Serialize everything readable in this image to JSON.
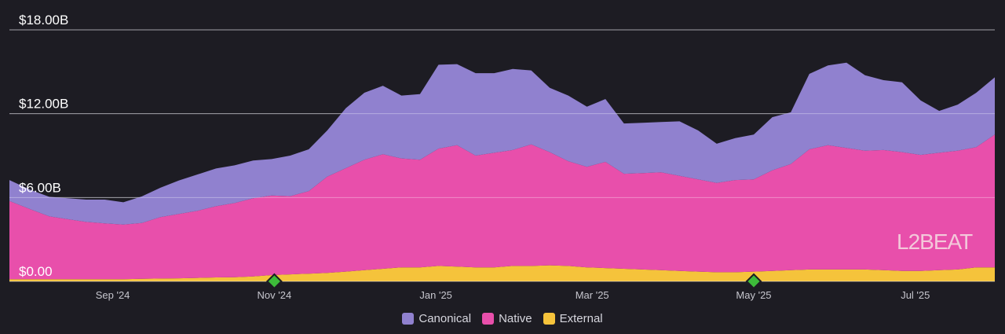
{
  "chart_data": {
    "type": "area",
    "stacked": true,
    "yticks": [
      "$0.00",
      "$6.00B",
      "$12.00B",
      "$18.00B"
    ],
    "ylim": [
      0,
      18
    ],
    "xticks": [
      "Sep '24",
      "Nov '24",
      "Jan '25",
      "Mar '25",
      "May '25",
      "Jul '25"
    ],
    "x": [
      "2024-07-24",
      "2024-08-01",
      "2024-08-08",
      "2024-08-15",
      "2024-08-22",
      "2024-08-29",
      "2024-09-05",
      "2024-09-12",
      "2024-09-19",
      "2024-09-26",
      "2024-10-03",
      "2024-10-10",
      "2024-10-17",
      "2024-10-24",
      "2024-10-31",
      "2024-11-07",
      "2024-11-14",
      "2024-11-21",
      "2024-11-28",
      "2024-12-05",
      "2024-12-12",
      "2024-12-19",
      "2024-12-26",
      "2025-01-02",
      "2025-01-09",
      "2025-01-16",
      "2025-01-23",
      "2025-01-30",
      "2025-02-06",
      "2025-02-13",
      "2025-02-20",
      "2025-02-27",
      "2025-03-06",
      "2025-03-13",
      "2025-03-20",
      "2025-03-27",
      "2025-04-03",
      "2025-04-10",
      "2025-04-17",
      "2025-04-24",
      "2025-05-01",
      "2025-05-08",
      "2025-05-15",
      "2025-05-22",
      "2025-05-29",
      "2025-06-05",
      "2025-06-12",
      "2025-06-19",
      "2025-06-26",
      "2025-07-03",
      "2025-07-10",
      "2025-07-17",
      "2025-07-24",
      "2025-07-31"
    ],
    "series": [
      {
        "name": "External",
        "color": "#f5c33b",
        "values": [
          0.15,
          0.15,
          0.15,
          0.15,
          0.15,
          0.15,
          0.16,
          0.18,
          0.2,
          0.22,
          0.25,
          0.28,
          0.3,
          0.35,
          0.45,
          0.5,
          0.55,
          0.6,
          0.7,
          0.8,
          0.9,
          1.0,
          1.0,
          1.1,
          1.05,
          1.0,
          1.0,
          1.1,
          1.1,
          1.15,
          1.1,
          1.0,
          0.95,
          0.9,
          0.85,
          0.8,
          0.75,
          0.7,
          0.65,
          0.65,
          0.7,
          0.75,
          0.8,
          0.85,
          0.85,
          0.85,
          0.85,
          0.8,
          0.75,
          0.75,
          0.8,
          0.85,
          1.0,
          1.0
        ]
      },
      {
        "name": "Native",
        "color": "#e84fab",
        "values": [
          5.6,
          5.0,
          4.5,
          4.3,
          4.1,
          4.0,
          3.9,
          4.0,
          4.4,
          4.6,
          4.8,
          5.1,
          5.3,
          5.6,
          5.7,
          5.6,
          5.9,
          6.9,
          7.4,
          7.9,
          8.2,
          7.8,
          7.7,
          8.4,
          8.7,
          8.0,
          8.2,
          8.3,
          8.7,
          8.1,
          7.5,
          7.2,
          7.6,
          6.8,
          6.9,
          7.0,
          6.8,
          6.6,
          6.4,
          6.6,
          6.6,
          7.2,
          7.6,
          8.6,
          8.9,
          8.7,
          8.5,
          8.6,
          8.5,
          8.3,
          8.4,
          8.5,
          8.6,
          9.5
        ]
      },
      {
        "name": "Canonical",
        "color": "#9081cf",
        "values": [
          1.5,
          1.4,
          1.4,
          1.5,
          1.6,
          1.7,
          1.6,
          1.9,
          2.1,
          2.4,
          2.6,
          2.7,
          2.7,
          2.7,
          2.6,
          2.9,
          3.0,
          3.3,
          4.3,
          4.8,
          4.9,
          4.5,
          4.7,
          6.0,
          5.8,
          5.9,
          5.7,
          5.8,
          5.3,
          4.6,
          4.7,
          4.3,
          4.5,
          3.6,
          3.6,
          3.6,
          3.9,
          3.5,
          2.8,
          3.0,
          3.2,
          3.8,
          3.7,
          5.4,
          5.7,
          6.1,
          5.4,
          5.0,
          5.0,
          3.9,
          3.0,
          3.3,
          3.9,
          4.1
        ]
      }
    ],
    "legend": [
      "Canonical",
      "Native",
      "External"
    ],
    "legend_position": "bottom-center",
    "event_markers": [
      "2024-11-01",
      "2025-05-01"
    ],
    "grid": true
  },
  "legend_labels": {
    "canonical": "Canonical",
    "native": "Native",
    "external": "External"
  },
  "colors": {
    "canonical": "#9081cf",
    "native": "#e84fab",
    "external": "#f5c33b",
    "marker": "#3dbb3a"
  },
  "watermark": "L2BEAT"
}
